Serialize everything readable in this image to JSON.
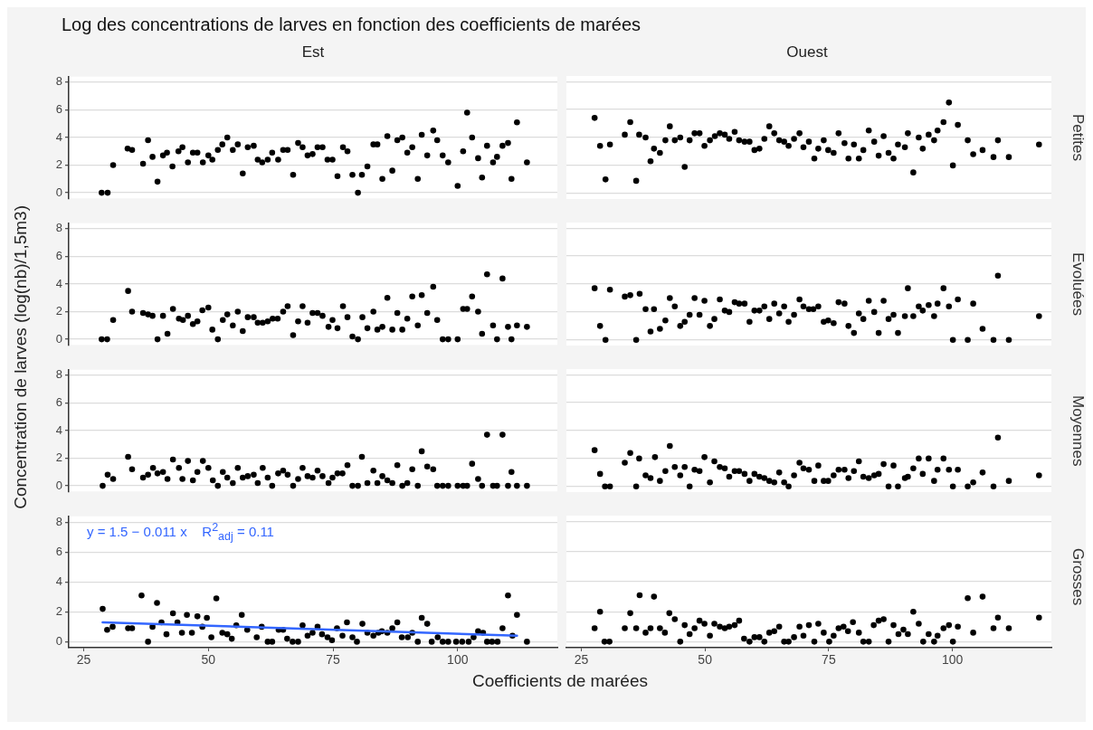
{
  "chart_data": [
    {
      "type": "scatter",
      "title": "Log des concentrations de larves en fonction des coefficients de marées",
      "subtitle": "Est",
      "ylabel": "Concentration de larves (log(nb)/1,5m3)",
      "color": "#000000",
      "marker": "circle",
      "xlim": [
        22,
        120
      ],
      "xticks": [
        25,
        50,
        75,
        100
      ],
      "ylim": [
        -0.4,
        8.4
      ],
      "yticks": [
        0,
        2,
        4,
        6,
        8
      ],
      "grid": "y",
      "tick_labels": "y",
      "x": [
        28.6,
        29.8,
        30.9,
        33.8,
        34.7,
        36.9,
        37.9,
        38.8,
        39.8,
        40.9,
        41.7,
        42.8,
        44.0,
        44.8,
        45.9,
        46.9,
        47.8,
        48.9,
        50.0,
        50.8,
        51.9,
        52.8,
        53.8,
        54.9,
        55.9,
        56.9,
        57.9,
        59.1,
        59.9,
        60.8,
        61.9,
        62.8,
        64.0,
        65.0,
        65.9,
        67.0,
        68.0,
        68.9,
        69.9,
        70.9,
        71.9,
        72.9,
        73.9,
        74.9,
        75.9,
        77.0,
        77.9,
        78.9,
        80.0,
        80.8,
        81.9,
        83.1,
        83.9,
        84.9,
        85.9,
        86.9,
        87.9,
        88.9,
        89.9,
        90.9,
        92.0,
        92.8,
        93.9,
        95.1,
        95.9,
        97.0,
        98.1,
        100.0,
        101.1,
        101.9,
        102.9,
        104.1,
        104.9,
        105.9,
        107.1,
        107.9,
        109.0,
        110.1,
        110.8,
        111.9,
        113.9
      ],
      "values": [
        0,
        0,
        2.0,
        3.2,
        3.1,
        2.1,
        3.8,
        2.6,
        0.8,
        2.7,
        2.9,
        1.9,
        3.0,
        3.3,
        2.2,
        2.9,
        2.9,
        2.2,
        2.7,
        2.4,
        3.1,
        3.5,
        4.0,
        3.1,
        3.5,
        1.4,
        3.3,
        3.4,
        2.4,
        2.2,
        2.4,
        2.9,
        2.4,
        3.1,
        3.1,
        1.3,
        3.6,
        3.3,
        2.7,
        2.8,
        3.3,
        3.3,
        2.4,
        2.4,
        1.2,
        3.3,
        3.0,
        1.3,
        0,
        1.3,
        1.9,
        3.5,
        3.5,
        1.0,
        4.1,
        1.6,
        3.8,
        4.0,
        2.9,
        3.3,
        1.0,
        4.2,
        2.7,
        4.5,
        3.8,
        2.7,
        2.2,
        0.5,
        3.0,
        5.8,
        4.0,
        2.5,
        1.1,
        3.4,
        2.2,
        2.6,
        3.4,
        3.6,
        1.0,
        5.1,
        2.2
      ]
    },
    {
      "type": "scatter",
      "subtitle": "Ouest",
      "y2label": "Petites",
      "color": "#000000",
      "marker": "circle",
      "xlim": [
        22,
        120
      ],
      "xticks": [
        25,
        50,
        75,
        100
      ],
      "ylim": [
        -0.4,
        8.4
      ],
      "yticks": [
        0,
        2,
        4,
        6,
        8
      ],
      "grid": "y",
      "tick_labels": false,
      "x": [
        27.7,
        28.8,
        29.9,
        30.8,
        33.8,
        34.9,
        36.1,
        36.7,
        38.0,
        39.0,
        39.7,
        40.9,
        42.0,
        42.9,
        43.9,
        45.0,
        45.9,
        46.9,
        47.9,
        48.9,
        49.9,
        51.0,
        52.0,
        53.0,
        54.0,
        54.9,
        56.0,
        56.9,
        58.0,
        59.0,
        60.0,
        61.0,
        62.0,
        63.0,
        64.0,
        65.0,
        66.0,
        66.9,
        68.0,
        69.1,
        69.9,
        71.0,
        72.1,
        72.9,
        74.0,
        74.9,
        76.0,
        77.0,
        78.2,
        79.0,
        80.1,
        81.1,
        82.0,
        83.1,
        84.2,
        85.1,
        86.1,
        87.1,
        88.1,
        89.0,
        90.4,
        91.0,
        92.1,
        93.2,
        94.0,
        95.2,
        96.3,
        97.0,
        98.2,
        99.3,
        100.1,
        101.1,
        103.1,
        104.2,
        106.1,
        108.3,
        109.2,
        111.4,
        117.5
      ],
      "values": [
        5.4,
        3.4,
        1.0,
        3.5,
        4.2,
        5.1,
        0.9,
        4.2,
        4.0,
        2.3,
        3.2,
        2.9,
        3.8,
        4.8,
        3.8,
        4.0,
        1.9,
        3.8,
        4.3,
        4.3,
        3.4,
        3.8,
        4.1,
        4.3,
        4.2,
        3.9,
        4.4,
        3.8,
        3.7,
        3.7,
        3.1,
        3.2,
        3.9,
        4.8,
        4.3,
        3.8,
        3.7,
        3.4,
        3.9,
        4.3,
        3.3,
        3.7,
        2.5,
        3.2,
        3.8,
        3.1,
        2.9,
        4.3,
        3.6,
        2.5,
        3.5,
        2.5,
        3.1,
        4.5,
        3.7,
        2.7,
        4.1,
        2.9,
        2.5,
        3.5,
        3.3,
        4.3,
        1.5,
        4.0,
        3.2,
        4.2,
        3.8,
        4.5,
        5.1,
        6.5,
        2.0,
        4.9,
        3.8,
        2.8,
        3.1,
        2.6,
        3.8,
        2.6,
        3.5
      ]
    },
    {
      "type": "scatter",
      "color": "#000000",
      "marker": "circle",
      "xlim": [
        22,
        120
      ],
      "xticks": [
        25,
        50,
        75,
        100
      ],
      "ylim": [
        -0.4,
        8.4
      ],
      "yticks": [
        0,
        2,
        4,
        6,
        8
      ],
      "grid": "y",
      "tick_labels": "y",
      "x": [
        28.6,
        29.7,
        30.9,
        33.9,
        34.7,
        36.9,
        37.9,
        38.8,
        39.8,
        40.9,
        41.8,
        42.9,
        44.1,
        44.9,
        45.9,
        46.9,
        47.8,
        48.8,
        50.0,
        50.8,
        51.9,
        52.9,
        53.8,
        54.9,
        55.9,
        56.9,
        57.9,
        59.1,
        59.9,
        60.9,
        61.9,
        62.9,
        63.9,
        65.0,
        65.9,
        67.0,
        68.0,
        68.9,
        69.9,
        70.9,
        71.9,
        72.9,
        74.1,
        74.9,
        75.9,
        77.0,
        77.9,
        78.9,
        80.0,
        80.9,
        81.9,
        83.1,
        83.9,
        84.9,
        85.9,
        86.9,
        87.9,
        88.9,
        89.9,
        90.9,
        92.0,
        92.8,
        93.9,
        95.1,
        95.9,
        97.0,
        98.1,
        100.0,
        101.1,
        101.9,
        102.9,
        104.1,
        104.9,
        105.9,
        107.1,
        107.9,
        109.0,
        110.1,
        110.8,
        111.9,
        113.9
      ],
      "values": [
        0,
        0,
        1.4,
        3.5,
        2.0,
        1.9,
        1.8,
        1.7,
        0,
        1.7,
        0.4,
        2.2,
        1.5,
        1.4,
        1.7,
        1.1,
        1.3,
        2.1,
        2.3,
        0.7,
        0,
        1.4,
        1.8,
        1.0,
        2.0,
        0.6,
        1.6,
        1.6,
        1.2,
        1.2,
        1.3,
        1.5,
        1.5,
        2.0,
        2.4,
        0.3,
        1.3,
        2.4,
        1.2,
        1.9,
        1.9,
        1.7,
        0.9,
        1.4,
        0.8,
        2.4,
        1.6,
        0.2,
        0,
        1.6,
        0.8,
        2.0,
        0.7,
        0.9,
        3.0,
        0.7,
        1.9,
        0.7,
        1.5,
        3.1,
        1.0,
        3.2,
        1.9,
        3.8,
        1.4,
        0,
        0,
        0,
        2.2,
        2.2,
        3.1,
        2.0,
        0.4,
        4.7,
        1.0,
        0,
        4.4,
        0.9,
        0,
        1.0,
        0.9
      ]
    },
    {
      "type": "scatter",
      "y2label": "Evoluées",
      "color": "#000000",
      "marker": "circle",
      "xlim": [
        22,
        120
      ],
      "xticks": [
        25,
        50,
        75,
        100
      ],
      "ylim": [
        -0.4,
        8.4
      ],
      "yticks": [
        0,
        2,
        4,
        6,
        8
      ],
      "grid": "y",
      "tick_labels": false,
      "x": [
        27.7,
        28.8,
        29.9,
        30.8,
        33.8,
        34.9,
        36.1,
        36.8,
        38.0,
        39.0,
        39.7,
        40.9,
        42.0,
        42.9,
        43.9,
        45.0,
        45.9,
        46.9,
        47.9,
        48.9,
        49.9,
        51.0,
        51.9,
        53.0,
        54.0,
        54.9,
        56.0,
        56.9,
        58.0,
        59.0,
        60.0,
        61.0,
        62.0,
        63.0,
        64.0,
        65.0,
        66.0,
        66.9,
        68.0,
        69.1,
        69.9,
        71.0,
        71.9,
        72.9,
        74.0,
        74.9,
        76.0,
        77.0,
        78.2,
        79.0,
        80.1,
        81.1,
        82.0,
        83.1,
        84.2,
        85.1,
        86.1,
        87.1,
        88.1,
        89.0,
        90.4,
        91.0,
        92.1,
        93.2,
        94.0,
        95.2,
        96.3,
        97.0,
        98.2,
        99.3,
        100.1,
        101.1,
        103.1,
        104.2,
        106.1,
        108.3,
        109.2,
        111.4,
        117.5
      ],
      "values": [
        3.7,
        1.0,
        0,
        3.6,
        3.1,
        3.2,
        0,
        3.3,
        2.2,
        0.6,
        2.2,
        0.8,
        1.4,
        3.0,
        2.4,
        1.0,
        1.3,
        1.8,
        3.0,
        1.8,
        2.8,
        1.0,
        1.5,
        2.9,
        2.1,
        2.0,
        2.7,
        2.6,
        2.6,
        1.3,
        2.1,
        2.1,
        2.4,
        1.5,
        2.6,
        1.9,
        2.4,
        1.3,
        1.8,
        2.9,
        2.4,
        2.2,
        2.2,
        2.4,
        1.3,
        1.4,
        1.2,
        2.7,
        2.6,
        1.0,
        0.5,
        1.9,
        1.5,
        2.8,
        2.0,
        0.5,
        2.8,
        1.5,
        1.8,
        0.5,
        1.7,
        3.7,
        1.7,
        2.4,
        2.1,
        2.5,
        1.7,
        2.6,
        3.7,
        2.4,
        0,
        2.9,
        0,
        2.6,
        0.8,
        0,
        4.6,
        0,
        1.7
      ]
    },
    {
      "type": "scatter",
      "color": "#000000",
      "marker": "circle",
      "xlim": [
        22,
        120
      ],
      "xticks": [
        25,
        50,
        75,
        100
      ],
      "ylim": [
        -0.4,
        8.4
      ],
      "yticks": [
        0,
        2,
        4,
        6,
        8
      ],
      "grid": "y",
      "tick_labels": "y",
      "x": [
        28.8,
        29.8,
        30.9,
        33.9,
        34.7,
        36.9,
        37.9,
        38.9,
        39.8,
        40.9,
        41.8,
        42.9,
        44.1,
        44.8,
        45.9,
        46.9,
        47.8,
        48.9,
        50.0,
        50.9,
        51.9,
        52.9,
        53.8,
        54.9,
        55.9,
        56.9,
        57.9,
        59.1,
        59.9,
        60.9,
        61.9,
        62.8,
        64.0,
        65.0,
        65.9,
        67.0,
        68.0,
        68.9,
        69.9,
        70.9,
        71.9,
        72.9,
        74.1,
        74.9,
        75.9,
        76.9,
        77.9,
        78.9,
        80.0,
        80.8,
        81.9,
        83.1,
        83.9,
        84.9,
        85.9,
        86.9,
        87.9,
        88.9,
        89.9,
        90.9,
        92.0,
        92.8,
        93.9,
        95.1,
        95.9,
        97.0,
        98.1,
        100.0,
        101.1,
        101.9,
        102.9,
        104.1,
        104.9,
        105.9,
        107.1,
        107.9,
        109.0,
        110.1,
        110.8,
        111.9,
        113.9
      ],
      "values": [
        0,
        0.8,
        0.5,
        2.1,
        1.2,
        0.6,
        0.8,
        1.3,
        0.9,
        1.0,
        0.5,
        1.9,
        1.3,
        0.5,
        1.8,
        0.4,
        1.0,
        1.8,
        1.3,
        0.4,
        0,
        1.0,
        0.6,
        0.2,
        1.3,
        0.6,
        0.7,
        0.8,
        0.2,
        1.3,
        0.6,
        0,
        0.9,
        1.1,
        0.8,
        0,
        0.5,
        1.3,
        0.7,
        0.6,
        1.1,
        0.7,
        0.2,
        0.6,
        0.9,
        0.9,
        1.5,
        0,
        0,
        2.1,
        0.2,
        1.1,
        0.2,
        0.7,
        0.4,
        0.2,
        1.5,
        0,
        0.2,
        1.2,
        0,
        2.5,
        1.4,
        1.2,
        0,
        0,
        0,
        0,
        0,
        0,
        1.6,
        0.5,
        0,
        3.7,
        0,
        0,
        3.7,
        0,
        1.0,
        0,
        0
      ]
    },
    {
      "type": "scatter",
      "y2label": "Moyennes",
      "color": "#000000",
      "marker": "circle",
      "xlim": [
        22,
        120
      ],
      "xticks": [
        25,
        50,
        75,
        100
      ],
      "ylim": [
        -0.4,
        8.4
      ],
      "yticks": [
        0,
        2,
        4,
        6,
        8
      ],
      "grid": "y",
      "tick_labels": false,
      "x": [
        27.7,
        28.8,
        29.8,
        30.8,
        33.8,
        34.9,
        36.1,
        36.7,
        38.0,
        39.0,
        39.9,
        40.9,
        42.0,
        42.9,
        43.9,
        45.0,
        45.9,
        46.9,
        47.9,
        48.9,
        49.9,
        51.0,
        51.9,
        53.0,
        54.0,
        54.9,
        56.0,
        56.9,
        58.0,
        59.0,
        60.0,
        61.0,
        62.0,
        63.0,
        64.0,
        65.0,
        66.0,
        66.9,
        68.0,
        69.1,
        69.9,
        71.0,
        72.1,
        72.9,
        74.0,
        74.9,
        76.0,
        77.0,
        78.2,
        79.0,
        80.1,
        81.1,
        82.0,
        83.1,
        84.2,
        85.1,
        86.1,
        87.1,
        88.1,
        89.0,
        90.4,
        91.0,
        92.1,
        93.2,
        94.0,
        95.2,
        96.3,
        97.0,
        98.2,
        99.3,
        100.1,
        101.1,
        103.1,
        104.2,
        106.1,
        108.3,
        109.2,
        111.4,
        117.5
      ],
      "values": [
        2.6,
        0.9,
        0,
        0,
        1.7,
        2.4,
        0,
        2.0,
        0.8,
        0.6,
        2.1,
        0.4,
        1.1,
        2.9,
        1.4,
        0.8,
        1.4,
        0,
        1.2,
        1.1,
        2.1,
        0.3,
        1.8,
        1.4,
        1.3,
        0.7,
        1.1,
        1.1,
        0.9,
        0.4,
        0.9,
        0.7,
        0.6,
        0.4,
        0.3,
        1.0,
        0.3,
        0,
        0.8,
        1.7,
        1.3,
        1.2,
        0.4,
        1.5,
        0.4,
        0.4,
        0.8,
        1.2,
        1.2,
        0.6,
        1.1,
        1.8,
        0.7,
        0.6,
        0.8,
        0.9,
        1.6,
        0,
        1.5,
        0,
        0.6,
        0.7,
        1.3,
        2.0,
        0.9,
        2.0,
        0.4,
        1.2,
        2.0,
        1.2,
        0,
        1.2,
        0,
        0.3,
        1.0,
        0,
        3.5,
        0.4,
        0.8
      ]
    },
    {
      "type": "scatter",
      "xlabel": "Coefficients de marées",
      "marker": "circle",
      "xlim": [
        22,
        120
      ],
      "xticks": [
        25,
        50,
        75,
        100
      ],
      "ylim": [
        -0.4,
        8.4
      ],
      "yticks": [
        0,
        2,
        4,
        6,
        8
      ],
      "grid": "y",
      "annotations": [
        "y = 1.5 − 0.011 x    R$^{2}$$_{adj}$ = 0.11"
      ],
      "series": [
        {
          "color": "#000000",
          "x": [
            28.8,
            29.7,
            30.8,
            33.9,
            34.7,
            36.6,
            37.9,
            38.8,
            39.7,
            40.6,
            41.6,
            42.9,
            43.8,
            44.7,
            45.7,
            46.7,
            47.8,
            48.8,
            49.7,
            50.6,
            51.6,
            52.8,
            53.8,
            54.7,
            55.6,
            56.7,
            57.8,
            59.7,
            60.7,
            61.9,
            62.8,
            64.1,
            65.0,
            65.8,
            66.9,
            68.0,
            68.9,
            69.9,
            70.9,
            71.9,
            72.8,
            73.9,
            74.8,
            75.8,
            76.9,
            77.8,
            78.9,
            79.8,
            80.9,
            81.9,
            83.1,
            84.1,
            84.8,
            85.9,
            86.9,
            87.9,
            88.8,
            90.0,
            90.9,
            92.0,
            92.8,
            93.9,
            94.8,
            96.0,
            97.0,
            98.1,
            99.7,
            100.9,
            102.2,
            103.2,
            104.1,
            105.1,
            105.9,
            106.9,
            108.0,
            109.0,
            110.1,
            111.0,
            111.9,
            113.9
          ],
          "values": [
            2.2,
            0.8,
            1.0,
            0.9,
            0.9,
            3.1,
            0,
            1.0,
            2.6,
            1.3,
            0.5,
            1.9,
            1.3,
            0.6,
            1.8,
            0.6,
            1.7,
            1.0,
            1.6,
            0.3,
            2.9,
            0.6,
            0.5,
            0.2,
            1.1,
            1.8,
            0.8,
            0.3,
            1.0,
            0,
            0,
            0.8,
            0.8,
            0.2,
            0,
            0,
            1.1,
            0.4,
            0.6,
            1.0,
            0.5,
            0.3,
            0.1,
            0.9,
            0.4,
            1.3,
            0.3,
            0,
            1.2,
            0.6,
            0.4,
            0.6,
            0.7,
            0.6,
            0.9,
            1.3,
            0.3,
            0.3,
            0.6,
            0,
            1.6,
            1.2,
            0,
            0.3,
            0,
            0,
            0,
            0,
            0,
            0.3,
            0.7,
            0.6,
            0,
            0,
            0,
            0.9,
            3.1,
            0.4,
            1.8,
            0
          ]
        },
        {
          "type": "line",
          "color": "#3366ff",
          "marker": "none",
          "line_style": "solid",
          "x": [
            28.8,
            111.9
          ],
          "values": [
            1.3,
            0.4
          ]
        }
      ]
    },
    {
      "type": "scatter",
      "y2label": "Grosses",
      "color": "#000000",
      "marker": "circle",
      "xlim": [
        22,
        120
      ],
      "xticks": [
        25,
        50,
        75,
        100
      ],
      "ylim": [
        -0.4,
        8.4
      ],
      "yticks": [
        0,
        2,
        4,
        6,
        8
      ],
      "grid": "y",
      "tick_labels": "x",
      "x": [
        27.7,
        28.8,
        29.7,
        30.7,
        33.8,
        34.9,
        36.1,
        36.8,
        38.0,
        39.0,
        39.7,
        40.9,
        41.9,
        42.8,
        43.9,
        45.0,
        45.9,
        46.9,
        47.9,
        48.9,
        49.9,
        51.0,
        51.9,
        53.0,
        54.0,
        54.9,
        56.0,
        56.9,
        57.9,
        59.0,
        60.0,
        61.0,
        62.0,
        63.0,
        64.0,
        65.0,
        66.0,
        66.9,
        68.0,
        69.1,
        69.9,
        71.0,
        72.1,
        72.9,
        74.0,
        75.1,
        76.0,
        77.0,
        78.0,
        78.9,
        79.9,
        81.1,
        82.0,
        83.1,
        84.1,
        85.1,
        86.1,
        87.1,
        88.1,
        89.1,
        90.1,
        91.0,
        92.1,
        93.2,
        94.1,
        95.2,
        96.3,
        97.0,
        98.2,
        99.3,
        100.1,
        101.1,
        103.1,
        104.2,
        106.1,
        108.3,
        109.2,
        111.4,
        117.5
      ],
      "values": [
        0.9,
        2.0,
        0,
        0,
        0.9,
        1.9,
        0.9,
        3.1,
        0.6,
        0.9,
        3.0,
        0.9,
        0.6,
        1.9,
        1.5,
        0,
        1.1,
        0.5,
        0.9,
        1.4,
        1.2,
        0.4,
        1.2,
        1.0,
        0.9,
        1.0,
        1.1,
        1.4,
        0.2,
        0,
        0.3,
        0.3,
        0,
        0.6,
        0.7,
        1.0,
        0,
        0,
        0.3,
        1.0,
        0.4,
        1.1,
        0,
        1.2,
        0.6,
        0,
        0.4,
        0.9,
        1.0,
        0.7,
        1.3,
        0.6,
        0,
        0,
        1.1,
        1.4,
        1.5,
        0,
        1.1,
        0.5,
        0.8,
        0.5,
        2.0,
        1.2,
        0,
        0.5,
        0,
        0.4,
        0.9,
        1.1,
        0,
        1.0,
        2.9,
        0.6,
        3.0,
        0.9,
        1.6,
        0.9,
        1.6
      ]
    }
  ]
}
